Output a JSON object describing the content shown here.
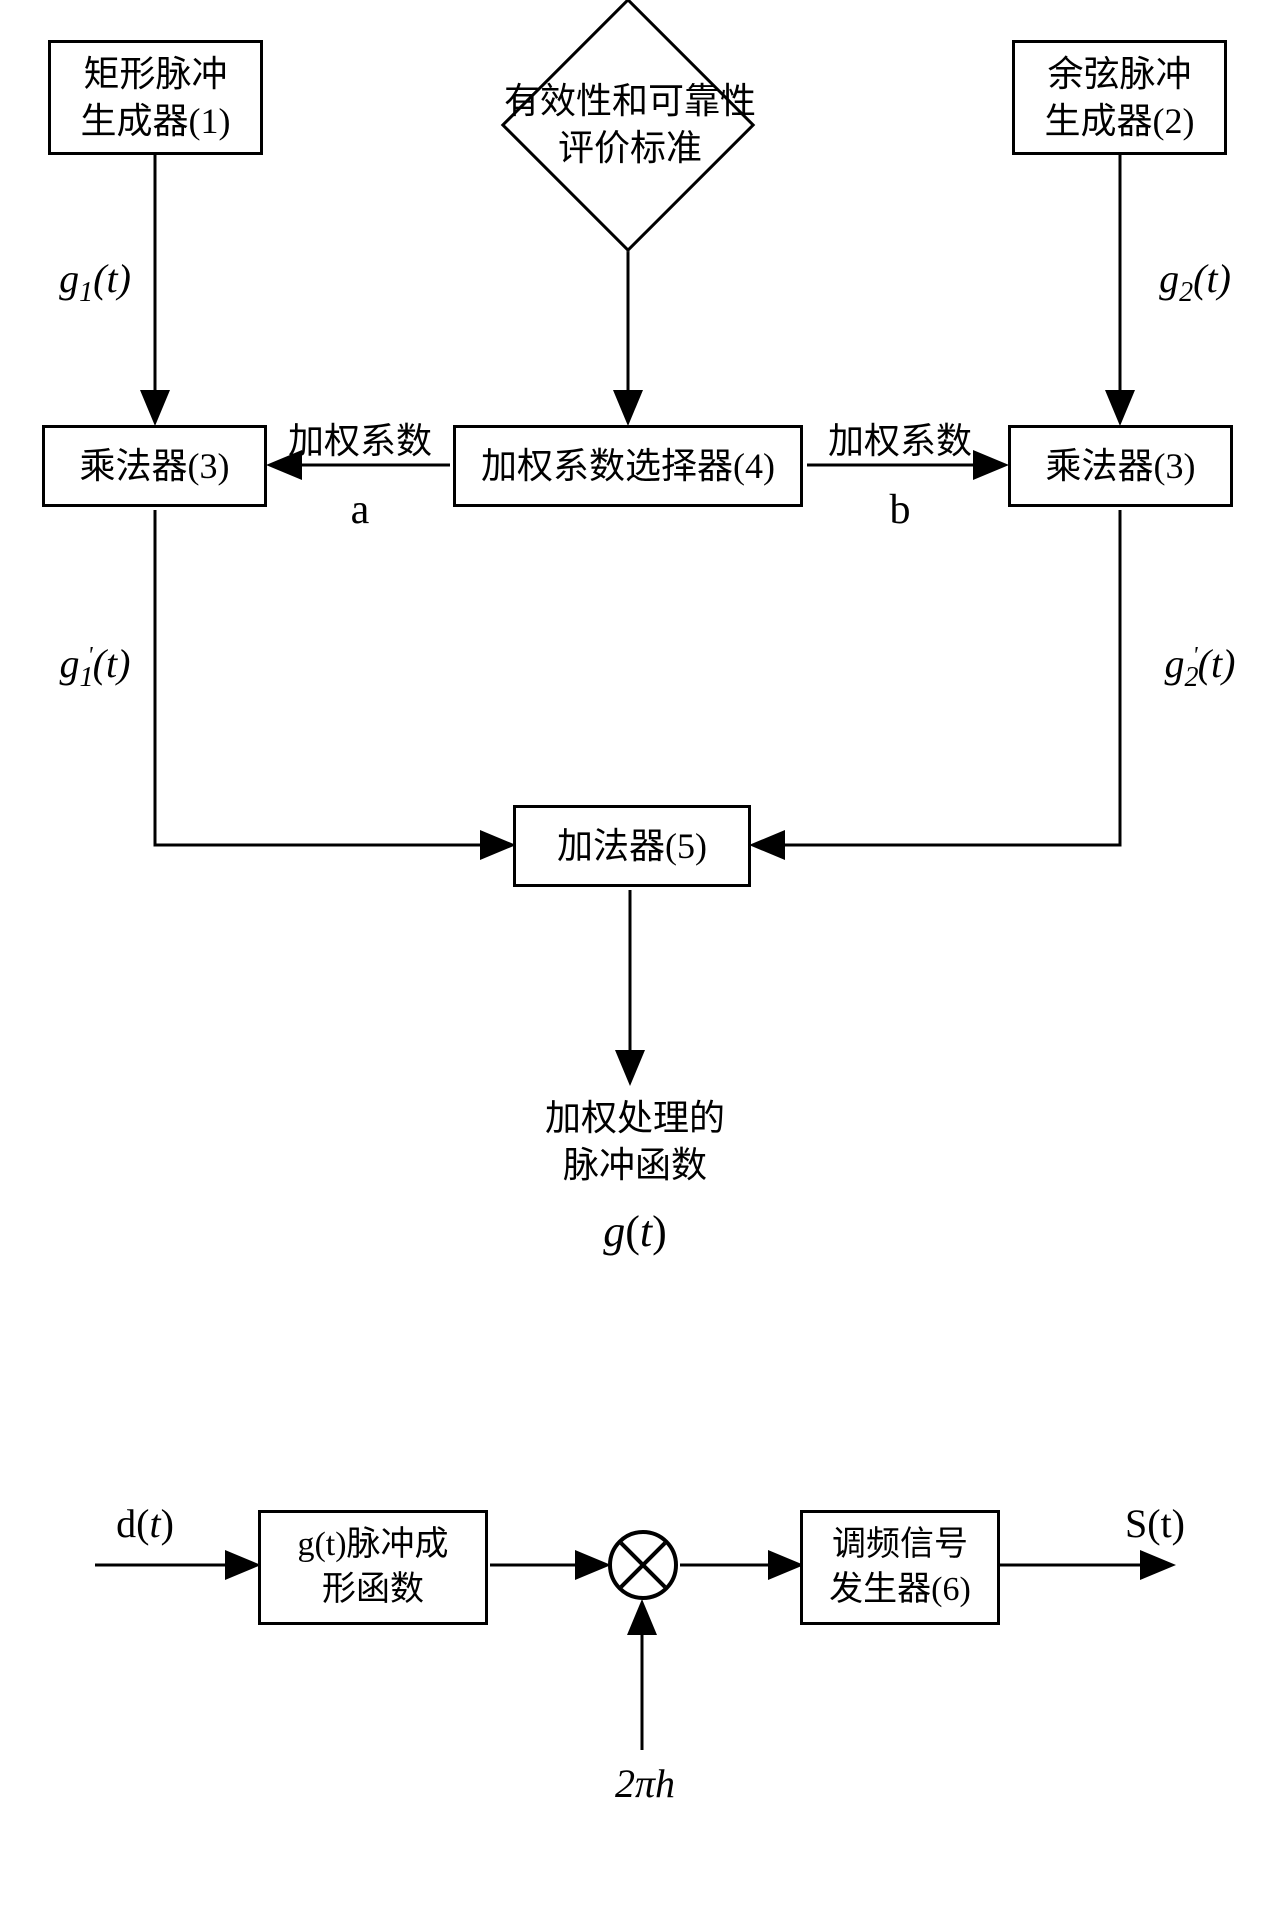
{
  "type": "flowchart",
  "colors": {
    "stroke": "#000000",
    "background": "#ffffff",
    "text": "#000000"
  },
  "stroke_width": 3,
  "font": {
    "cn": "SimSun",
    "math": "Times New Roman",
    "size_box": 36,
    "size_math": 40
  },
  "nodes": {
    "rect_pulse_gen": {
      "text": "矩形脉冲\n生成器(1)",
      "shape": "rect"
    },
    "criteria": {
      "text": "有效性和可靠性\n评价标准",
      "shape": "diamond"
    },
    "cos_pulse_gen": {
      "text": "余弦脉冲\n生成器(2)",
      "shape": "rect"
    },
    "mult_left": {
      "text": "乘法器(3)",
      "shape": "rect"
    },
    "weight_select": {
      "text": "加权系数选择器(4)",
      "shape": "rect"
    },
    "mult_right": {
      "text": "乘法器(3)",
      "shape": "rect"
    },
    "adder": {
      "text": "加法器(5)",
      "shape": "rect"
    },
    "gt_pulse_shape": {
      "text": "g(t)脉冲成\n形函数",
      "shape": "rect"
    },
    "fm_signal_gen": {
      "text": "调频信号\n发生器(6)",
      "shape": "rect"
    },
    "mixer": {
      "shape": "circle-x"
    }
  },
  "edge_labels": {
    "g1t": "g₁(t)",
    "g2t": "g₂(t)",
    "weight_a": {
      "line1": "加权系数",
      "line2": "a"
    },
    "weight_b": {
      "line1": "加权系数",
      "line2": "b"
    },
    "g1t_prime": "g₁′(t)",
    "g2t_prime": "g₂′(t)",
    "weighted_pulse": {
      "line1": "加权处理的",
      "line2": "脉冲函数",
      "line3": "g(t)"
    },
    "dt": "d(t)",
    "st": "S(t)",
    "two_pi_h": "2πh"
  }
}
